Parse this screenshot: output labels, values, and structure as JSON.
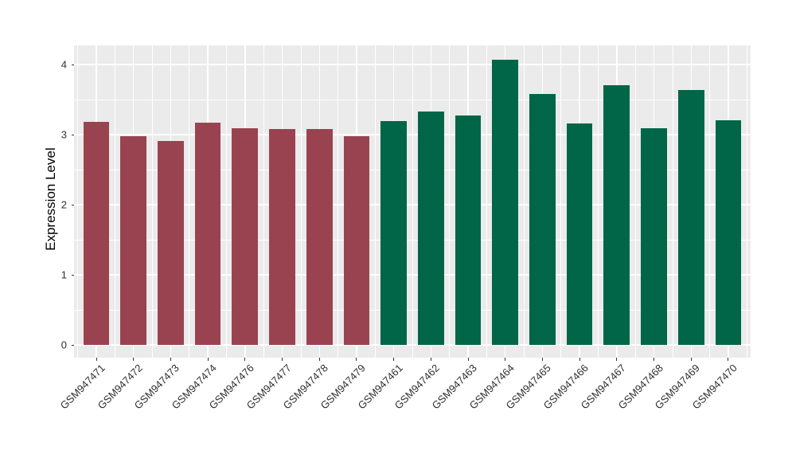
{
  "chart_data": {
    "type": "bar",
    "title": "",
    "xlabel": "",
    "ylabel": "Expression Level",
    "categories": [
      "GSM947471",
      "GSM947472",
      "GSM947473",
      "GSM947474",
      "GSM947476",
      "GSM947477",
      "GSM947478",
      "GSM947479",
      "GSM947461",
      "GSM947462",
      "GSM947463",
      "GSM947464",
      "GSM947465",
      "GSM947466",
      "GSM947467",
      "GSM947468",
      "GSM947469",
      "GSM947470"
    ],
    "values": [
      3.18,
      2.98,
      2.91,
      3.17,
      3.09,
      3.08,
      3.08,
      2.98,
      3.19,
      3.33,
      3.27,
      4.07,
      3.58,
      3.16,
      3.71,
      3.09,
      3.64,
      3.21
    ],
    "bar_colors": [
      "#9A4350",
      "#9A4350",
      "#9A4350",
      "#9A4350",
      "#9A4350",
      "#9A4350",
      "#9A4350",
      "#9A4350",
      "#006647",
      "#006647",
      "#006647",
      "#006647",
      "#006647",
      "#006647",
      "#006647",
      "#006647",
      "#006647",
      "#006647"
    ],
    "group_colors": {
      "red_group": "#9A4350",
      "green_group": "#006647"
    },
    "yticks": [
      "0",
      "1",
      "2",
      "3",
      "4"
    ],
    "ytick_values": [
      0,
      1,
      2,
      3,
      4
    ],
    "ylim": [
      0,
      4.27
    ],
    "grid": "major and minor, white on gray panel",
    "legend_position": "none",
    "panel_background": "#EBEBEB",
    "gridline_color": "#FFFFFF",
    "axis_text_color": "#303030",
    "x_label_rotation_deg": 45
  }
}
